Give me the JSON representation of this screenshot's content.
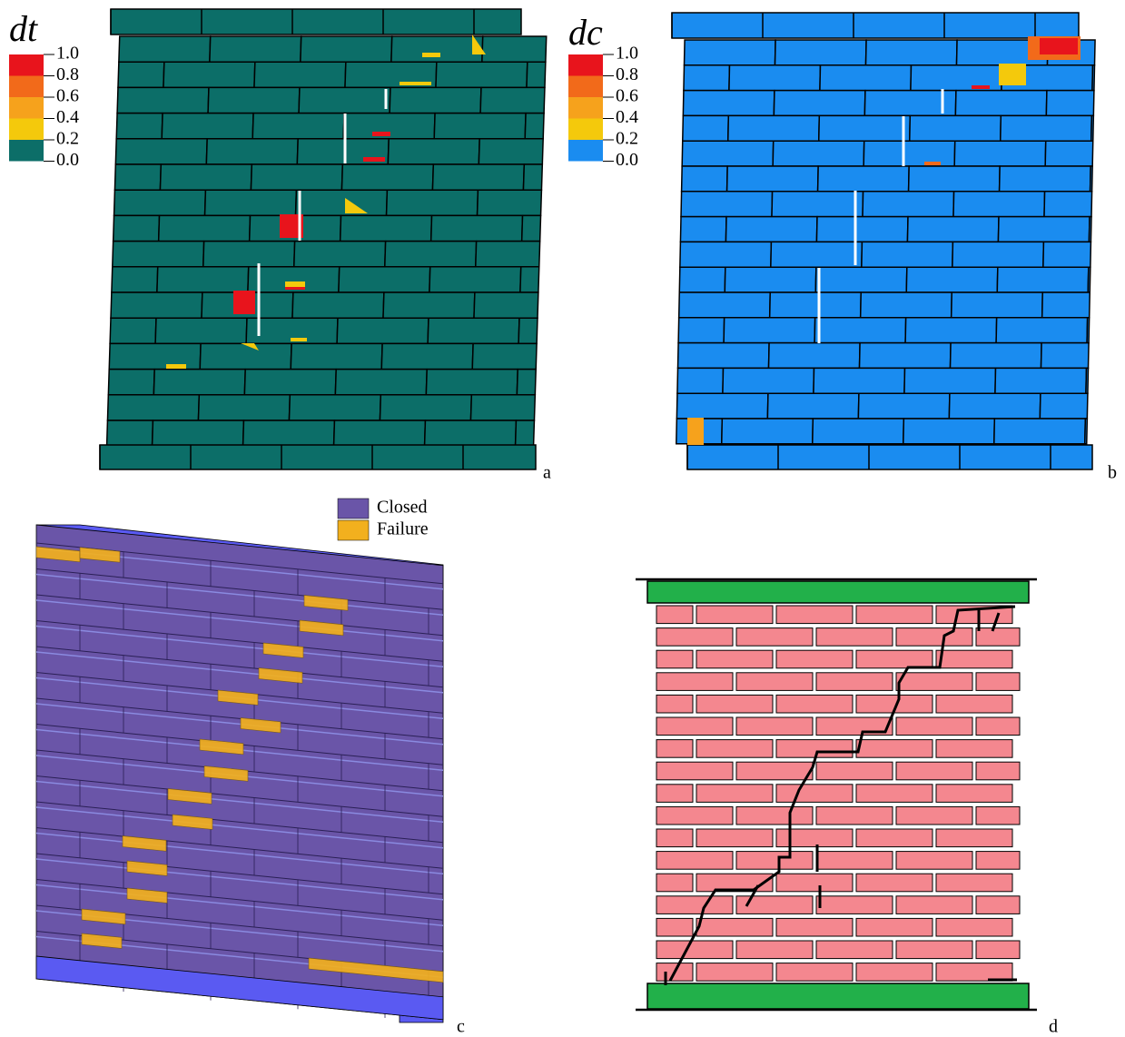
{
  "panels": [
    {
      "label": "a",
      "legend": {
        "title": "dt",
        "ticks": [
          "1.0",
          "0.8",
          "0.6",
          "0.4",
          "0.2",
          "0.0"
        ]
      }
    },
    {
      "label": "b",
      "legend": {
        "title": "dc",
        "ticks": [
          "1.0",
          "0.8",
          "0.6",
          "0.4",
          "0.2",
          "0.0"
        ]
      }
    },
    {
      "label": "c",
      "legend": {
        "items": [
          "Closed",
          "Failure"
        ]
      }
    },
    {
      "label": "d"
    }
  ]
}
